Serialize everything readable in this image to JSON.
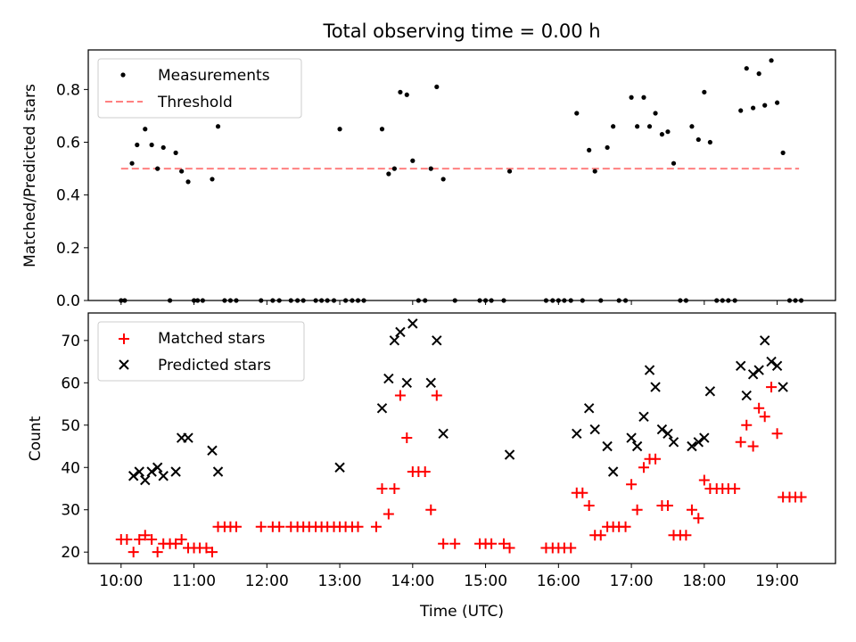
{
  "figure": {
    "title": "Total observing time = 0.00 h",
    "xlabel": "Time (UTC)",
    "xticks": [
      {
        "label": "10:00",
        "hour": 10
      },
      {
        "label": "11:00",
        "hour": 11
      },
      {
        "label": "12:00",
        "hour": 12
      },
      {
        "label": "13:00",
        "hour": 13
      },
      {
        "label": "14:00",
        "hour": 14
      },
      {
        "label": "15:00",
        "hour": 15
      },
      {
        "label": "16:00",
        "hour": 16
      },
      {
        "label": "17:00",
        "hour": 17
      },
      {
        "label": "18:00",
        "hour": 18
      },
      {
        "label": "19:00",
        "hour": 19
      }
    ],
    "xlim": [
      9.55,
      19.8
    ]
  },
  "colors": {
    "measurements": "#000000",
    "threshold": "#ff8080",
    "matched": "#ff0000",
    "predicted": "#000000"
  },
  "chart_data": [
    {
      "type": "scatter",
      "title": "Total observing time = 0.00 h",
      "xlabel": "",
      "ylabel": "Matched/Predicted stars",
      "ylim": [
        0,
        0.95
      ],
      "yticks": [
        {
          "label": "0.0",
          "value": 0.0
        },
        {
          "label": "0.2",
          "value": 0.2
        },
        {
          "label": "0.4",
          "value": 0.4
        },
        {
          "label": "0.6",
          "value": 0.6
        },
        {
          "label": "0.8",
          "value": 0.8
        }
      ],
      "legend": {
        "position": "top-left",
        "entries": [
          "Measurements",
          "Threshold"
        ]
      },
      "threshold": {
        "name": "Threshold",
        "value": 0.5,
        "x_range": [
          10.0,
          19.3
        ]
      },
      "series": [
        {
          "name": "Measurements",
          "marker": "dot",
          "points": [
            [
              10.0,
              0
            ],
            [
              10.05,
              0
            ],
            [
              10.15,
              0.52
            ],
            [
              10.22,
              0.59
            ],
            [
              10.33,
              0.65
            ],
            [
              10.42,
              0.59
            ],
            [
              10.5,
              0.5
            ],
            [
              10.58,
              0.58
            ],
            [
              10.67,
              0
            ],
            [
              10.75,
              0.56
            ],
            [
              10.83,
              0.49
            ],
            [
              10.92,
              0.45
            ],
            [
              11.0,
              0
            ],
            [
              11.05,
              0
            ],
            [
              11.12,
              0
            ],
            [
              11.25,
              0.46
            ],
            [
              11.33,
              0.66
            ],
            [
              11.42,
              0
            ],
            [
              11.5,
              0
            ],
            [
              11.58,
              0
            ],
            [
              11.92,
              0
            ],
            [
              12.08,
              0
            ],
            [
              12.17,
              0
            ],
            [
              12.33,
              0
            ],
            [
              12.42,
              0
            ],
            [
              12.5,
              0
            ],
            [
              12.67,
              0
            ],
            [
              12.75,
              0
            ],
            [
              12.83,
              0
            ],
            [
              12.92,
              0
            ],
            [
              13.0,
              0.65
            ],
            [
              13.08,
              0
            ],
            [
              13.17,
              0
            ],
            [
              13.25,
              0
            ],
            [
              13.33,
              0
            ],
            [
              13.58,
              0.65
            ],
            [
              13.67,
              0.48
            ],
            [
              13.75,
              0.5
            ],
            [
              13.83,
              0.79
            ],
            [
              13.92,
              0.78
            ],
            [
              14.0,
              0.53
            ],
            [
              14.08,
              0
            ],
            [
              14.17,
              0
            ],
            [
              14.25,
              0.5
            ],
            [
              14.33,
              0.81
            ],
            [
              14.42,
              0.46
            ],
            [
              14.58,
              0
            ],
            [
              14.92,
              0
            ],
            [
              15.0,
              0
            ],
            [
              15.08,
              0
            ],
            [
              15.25,
              0
            ],
            [
              15.33,
              0.49
            ],
            [
              15.83,
              0
            ],
            [
              15.92,
              0
            ],
            [
              16.0,
              0
            ],
            [
              16.08,
              0
            ],
            [
              16.17,
              0
            ],
            [
              16.25,
              0.71
            ],
            [
              16.33,
              0
            ],
            [
              16.42,
              0.57
            ],
            [
              16.5,
              0.49
            ],
            [
              16.58,
              0
            ],
            [
              16.67,
              0.58
            ],
            [
              16.75,
              0.66
            ],
            [
              16.83,
              0
            ],
            [
              16.92,
              0
            ],
            [
              17.0,
              0.77
            ],
            [
              17.08,
              0.66
            ],
            [
              17.17,
              0.77
            ],
            [
              17.25,
              0.66
            ],
            [
              17.33,
              0.71
            ],
            [
              17.42,
              0.63
            ],
            [
              17.5,
              0.64
            ],
            [
              17.58,
              0.52
            ],
            [
              17.67,
              0
            ],
            [
              17.75,
              0
            ],
            [
              17.83,
              0.66
            ],
            [
              17.92,
              0.61
            ],
            [
              18.0,
              0.79
            ],
            [
              18.08,
              0.6
            ],
            [
              18.17,
              0
            ],
            [
              18.25,
              0
            ],
            [
              18.33,
              0
            ],
            [
              18.42,
              0
            ],
            [
              18.5,
              0.72
            ],
            [
              18.58,
              0.88
            ],
            [
              18.67,
              0.73
            ],
            [
              18.75,
              0.86
            ],
            [
              18.83,
              0.74
            ],
            [
              18.92,
              0.91
            ],
            [
              19.0,
              0.75
            ],
            [
              19.08,
              0.56
            ],
            [
              19.17,
              0
            ],
            [
              19.25,
              0
            ],
            [
              19.33,
              0
            ]
          ]
        }
      ]
    },
    {
      "type": "scatter",
      "title": "",
      "xlabel": "Time (UTC)",
      "ylabel": "Count",
      "ylim": [
        17.3,
        76.5
      ],
      "yticks": [
        {
          "label": "20",
          "value": 20
        },
        {
          "label": "30",
          "value": 30
        },
        {
          "label": "40",
          "value": 40
        },
        {
          "label": "50",
          "value": 50
        },
        {
          "label": "60",
          "value": 60
        },
        {
          "label": "70",
          "value": 70
        }
      ],
      "legend": {
        "position": "top-left",
        "entries": [
          "Matched stars",
          "Predicted stars"
        ]
      },
      "series": [
        {
          "name": "Matched stars",
          "marker": "plus",
          "points": [
            [
              10.0,
              23
            ],
            [
              10.08,
              23
            ],
            [
              10.17,
              20
            ],
            [
              10.25,
              23
            ],
            [
              10.33,
              24
            ],
            [
              10.42,
              23
            ],
            [
              10.5,
              20
            ],
            [
              10.58,
              22
            ],
            [
              10.67,
              22
            ],
            [
              10.75,
              22
            ],
            [
              10.83,
              23
            ],
            [
              10.92,
              21
            ],
            [
              11.0,
              21
            ],
            [
              11.08,
              21
            ],
            [
              11.17,
              21
            ],
            [
              11.25,
              20
            ],
            [
              11.33,
              26
            ],
            [
              11.42,
              26
            ],
            [
              11.5,
              26
            ],
            [
              11.58,
              26
            ],
            [
              11.92,
              26
            ],
            [
              12.08,
              26
            ],
            [
              12.17,
              26
            ],
            [
              12.33,
              26
            ],
            [
              12.42,
              26
            ],
            [
              12.5,
              26
            ],
            [
              12.58,
              26
            ],
            [
              12.67,
              26
            ],
            [
              12.75,
              26
            ],
            [
              12.83,
              26
            ],
            [
              12.92,
              26
            ],
            [
              13.0,
              26
            ],
            [
              13.08,
              26
            ],
            [
              13.17,
              26
            ],
            [
              13.25,
              26
            ],
            [
              13.5,
              26
            ],
            [
              13.58,
              35
            ],
            [
              13.67,
              29
            ],
            [
              13.75,
              35
            ],
            [
              13.83,
              57
            ],
            [
              13.92,
              47
            ],
            [
              14.0,
              39
            ],
            [
              14.08,
              39
            ],
            [
              14.17,
              39
            ],
            [
              14.25,
              30
            ],
            [
              14.33,
              57
            ],
            [
              14.42,
              22
            ],
            [
              14.58,
              22
            ],
            [
              14.92,
              22
            ],
            [
              15.0,
              22
            ],
            [
              15.08,
              22
            ],
            [
              15.25,
              22
            ],
            [
              15.33,
              21
            ],
            [
              15.83,
              21
            ],
            [
              15.92,
              21
            ],
            [
              16.0,
              21
            ],
            [
              16.08,
              21
            ],
            [
              16.17,
              21
            ],
            [
              16.25,
              34
            ],
            [
              16.33,
              34
            ],
            [
              16.42,
              31
            ],
            [
              16.5,
              24
            ],
            [
              16.58,
              24
            ],
            [
              16.67,
              26
            ],
            [
              16.75,
              26
            ],
            [
              16.83,
              26
            ],
            [
              16.92,
              26
            ],
            [
              17.0,
              36
            ],
            [
              17.08,
              30
            ],
            [
              17.17,
              40
            ],
            [
              17.25,
              42
            ],
            [
              17.33,
              42
            ],
            [
              17.42,
              31
            ],
            [
              17.5,
              31
            ],
            [
              17.58,
              24
            ],
            [
              17.67,
              24
            ],
            [
              17.75,
              24
            ],
            [
              17.83,
              30
            ],
            [
              17.92,
              28
            ],
            [
              18.0,
              37
            ],
            [
              18.08,
              35
            ],
            [
              18.17,
              35
            ],
            [
              18.25,
              35
            ],
            [
              18.33,
              35
            ],
            [
              18.42,
              35
            ],
            [
              18.5,
              46
            ],
            [
              18.58,
              50
            ],
            [
              18.67,
              45
            ],
            [
              18.75,
              54
            ],
            [
              18.83,
              52
            ],
            [
              18.92,
              59
            ],
            [
              19.0,
              48
            ],
            [
              19.08,
              33
            ],
            [
              19.17,
              33
            ],
            [
              19.25,
              33
            ],
            [
              19.33,
              33
            ]
          ]
        },
        {
          "name": "Predicted stars",
          "marker": "x",
          "points": [
            [
              10.17,
              38
            ],
            [
              10.25,
              39
            ],
            [
              10.33,
              37
            ],
            [
              10.42,
              39
            ],
            [
              10.5,
              40
            ],
            [
              10.58,
              38
            ],
            [
              10.75,
              39
            ],
            [
              10.83,
              47
            ],
            [
              10.92,
              47
            ],
            [
              11.25,
              44
            ],
            [
              11.33,
              39
            ],
            [
              13.0,
              40
            ],
            [
              13.58,
              54
            ],
            [
              13.67,
              61
            ],
            [
              13.75,
              70
            ],
            [
              13.83,
              72
            ],
            [
              13.92,
              60
            ],
            [
              14.0,
              74
            ],
            [
              14.25,
              60
            ],
            [
              14.33,
              70
            ],
            [
              14.42,
              48
            ],
            [
              15.33,
              43
            ],
            [
              16.25,
              48
            ],
            [
              16.42,
              54
            ],
            [
              16.5,
              49
            ],
            [
              16.67,
              45
            ],
            [
              16.75,
              39
            ],
            [
              17.0,
              47
            ],
            [
              17.08,
              45
            ],
            [
              17.17,
              52
            ],
            [
              17.25,
              63
            ],
            [
              17.33,
              59
            ],
            [
              17.42,
              49
            ],
            [
              17.5,
              48
            ],
            [
              17.58,
              46
            ],
            [
              17.83,
              45
            ],
            [
              17.92,
              46
            ],
            [
              18.0,
              47
            ],
            [
              18.08,
              58
            ],
            [
              18.5,
              64
            ],
            [
              18.58,
              57
            ],
            [
              18.67,
              62
            ],
            [
              18.75,
              63
            ],
            [
              18.83,
              70
            ],
            [
              18.92,
              65
            ],
            [
              19.0,
              64
            ],
            [
              19.08,
              59
            ]
          ]
        }
      ]
    }
  ]
}
